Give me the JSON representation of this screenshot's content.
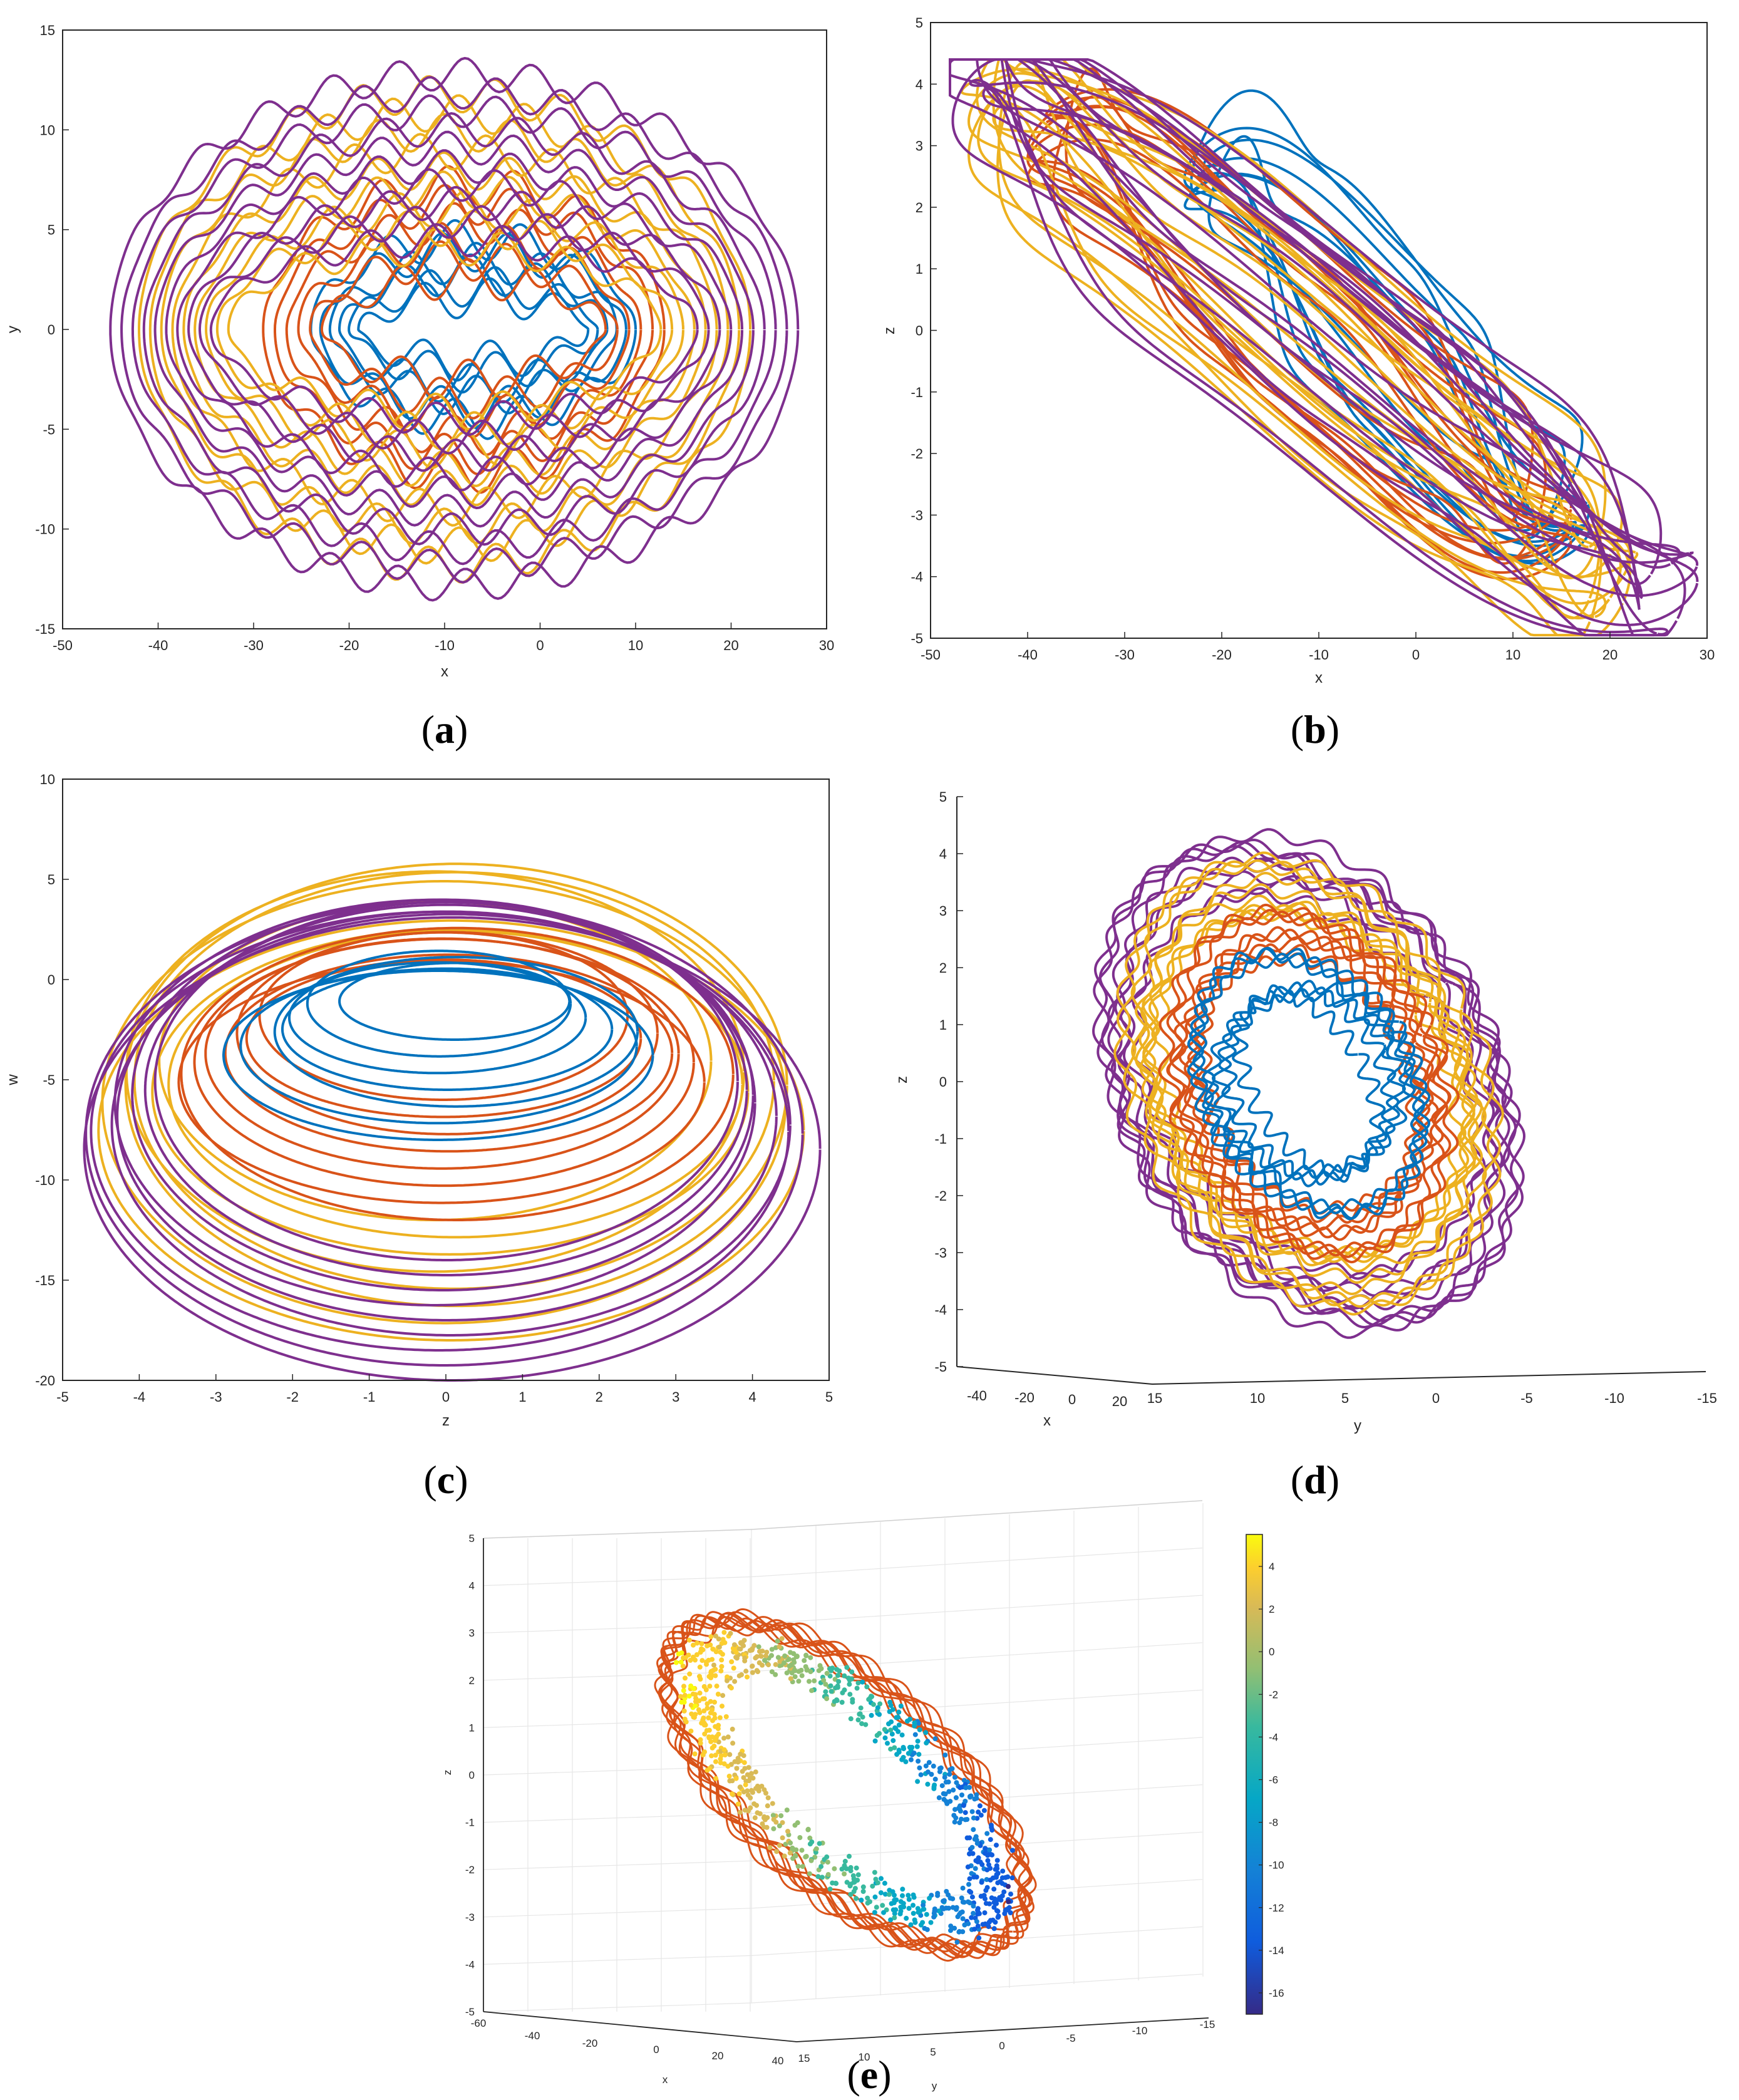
{
  "captions": {
    "a": "a",
    "b": "b",
    "c": "c",
    "d": "d",
    "e": "e"
  },
  "colors": {
    "blue": "#0072BD",
    "red_orange": "#D95319",
    "yellow": "#EDB120",
    "purple": "#7E2F8E"
  },
  "chart_data": [
    {
      "id": "a",
      "type": "line",
      "xlabel": "x",
      "ylabel": "y",
      "xlim": [
        -50,
        30
      ],
      "ylim": [
        -15,
        15
      ],
      "xticks": [
        -50,
        -40,
        -30,
        -20,
        -10,
        0,
        10,
        20,
        30
      ],
      "yticks": [
        -15,
        -10,
        -5,
        0,
        5,
        10,
        15
      ],
      "grid": false,
      "series": [
        {
          "color": "blue",
          "x_range": [
            -25,
            15
          ],
          "y_amplitude": 4.5,
          "loops": 6
        },
        {
          "color": "red_orange",
          "x_range": [
            -30,
            15
          ],
          "y_amplitude": 7,
          "loops": 6
        },
        {
          "color": "yellow",
          "x_range": [
            -42,
            22
          ],
          "y_amplitude": 12,
          "loops": 10
        },
        {
          "color": "purple",
          "x_range": [
            -46,
            28
          ],
          "y_amplitude": 13,
          "loops": 10
        }
      ]
    },
    {
      "id": "b",
      "type": "line",
      "xlabel": "x",
      "ylabel": "z",
      "xlim": [
        -50,
        30
      ],
      "ylim": [
        -5,
        5
      ],
      "xticks": [
        -50,
        -40,
        -30,
        -20,
        -10,
        0,
        10,
        20,
        30
      ],
      "yticks": [
        -5,
        -4,
        -3,
        -2,
        -1,
        0,
        1,
        2,
        3,
        4,
        5
      ],
      "grid": false,
      "series": [
        {
          "color": "blue",
          "x_range": [
            -20,
            15
          ],
          "z_range": [
            -3.5,
            2.5
          ]
        },
        {
          "color": "red_orange",
          "x_range": [
            -38,
            12
          ],
          "z_range": [
            -3,
            3.5
          ]
        },
        {
          "color": "yellow",
          "x_range": [
            -43,
            20
          ],
          "z_range": [
            -4.5,
            4.4
          ]
        },
        {
          "color": "purple",
          "x_range": [
            -47,
            28
          ],
          "z_range": [
            -4.9,
            4.4
          ]
        }
      ]
    },
    {
      "id": "c",
      "type": "line",
      "xlabel": "z",
      "ylabel": "w",
      "xlim": [
        -5,
        5
      ],
      "ylim": [
        -20,
        10
      ],
      "xticks": [
        -5,
        -4,
        -3,
        -2,
        -1,
        0,
        1,
        2,
        3,
        4,
        5
      ],
      "yticks": [
        -20,
        -15,
        -10,
        -5,
        0,
        5,
        10
      ],
      "grid": false,
      "series": [
        {
          "color": "blue",
          "z_range": [
            -3,
            3
          ],
          "w_range": [
            -8,
            1.5
          ]
        },
        {
          "color": "red_orange",
          "z_range": [
            -3.5,
            3.5
          ],
          "w_range": [
            -12,
            2.5
          ]
        },
        {
          "color": "yellow",
          "z_range": [
            -4.5,
            4.3
          ],
          "w_range": [
            -18,
            6
          ]
        },
        {
          "color": "purple",
          "z_range": [
            -4.9,
            4.4
          ],
          "w_range": [
            -20,
            4.3
          ]
        }
      ]
    },
    {
      "id": "d",
      "type": "line",
      "projection": "3d",
      "xlabel": "x",
      "ylabel": "y",
      "zlabel": "z",
      "xticks": [
        -40,
        -20,
        0,
        20
      ],
      "yticks": [
        15,
        10,
        5,
        0,
        -5,
        -10,
        -15
      ],
      "zticks": [
        -5,
        -4,
        -3,
        -2,
        -1,
        0,
        1,
        2,
        3,
        4,
        5
      ],
      "zlim": [
        -5,
        5
      ],
      "grid": false,
      "series": [
        {
          "color": "blue"
        },
        {
          "color": "red_orange"
        },
        {
          "color": "yellow"
        },
        {
          "color": "purple"
        }
      ]
    },
    {
      "id": "e",
      "type": "scatter",
      "projection": "3d",
      "xlabel": "x",
      "ylabel": "y",
      "zlabel": "z",
      "xtick_labels": [
        "-60",
        "-40",
        "-20",
        "0",
        "20",
        "40"
      ],
      "ytick_labels": [
        "15",
        "10",
        "5",
        "0",
        "-5",
        "-10",
        "-15"
      ],
      "zticks": [
        -5,
        -4,
        -3,
        -2,
        -1,
        0,
        1,
        2,
        3,
        4,
        5
      ],
      "zlim": [
        -5,
        5
      ],
      "grid": true,
      "colorbar": {
        "ticks": [
          4,
          2,
          0,
          -2,
          -4,
          -6,
          -8,
          -10,
          -12,
          -14,
          -16
        ],
        "range": [
          -17,
          5.5
        ],
        "colormap": "parula"
      },
      "series": [
        {
          "kind": "line",
          "color": "red_orange"
        },
        {
          "kind": "points",
          "colored_by": "colorbar"
        }
      ]
    }
  ]
}
